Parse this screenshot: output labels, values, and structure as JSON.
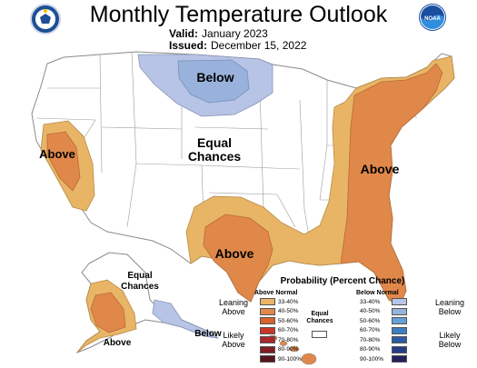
{
  "header": {
    "title": "Monthly Temperature Outlook",
    "valid_label": "Valid:",
    "valid_value": "January 2023",
    "issued_label": "Issued:",
    "issued_value": "December 15, 2022",
    "right_logo_text": "NOAA"
  },
  "map": {
    "labels": {
      "below_north": "Below",
      "above_west": "Above",
      "equal_1": "Equal",
      "equal_2": "Chances",
      "above_east": "Above",
      "above_south": "Above",
      "ak_equal_1": "Equal",
      "ak_equal_2": "Chances",
      "ak_above": "Above",
      "ak_below": "Below"
    },
    "colors": {
      "above_33_40": "#e8b567",
      "above_40_50": "#e0884a",
      "below_33_40": "#b8c4e6",
      "below_40_50": "#98b2db",
      "land": "#ffffff",
      "border": "#8a8a8a"
    }
  },
  "legend": {
    "title": "Probability (Percent Chance)",
    "above_header": "Above Normal",
    "below_header": "Below Normal",
    "equal_chances_1": "Equal",
    "equal_chances_2": "Chances",
    "leaning_above_1": "Leaning",
    "leaning_above_2": "Above",
    "likely_above_1": "Likely",
    "likely_above_2": "Above",
    "leaning_below_1": "Leaning",
    "leaning_below_2": "Below",
    "likely_below_1": "Likely",
    "likely_below_2": "Below",
    "above": [
      {
        "label": "33-40%",
        "color": "#e8b567"
      },
      {
        "label": "40-50%",
        "color": "#e0884a"
      },
      {
        "label": "50-60%",
        "color": "#d9612e"
      },
      {
        "label": "60-70%",
        "color": "#c9372a"
      },
      {
        "label": "70-80%",
        "color": "#a9272a"
      },
      {
        "label": "80-90%",
        "color": "#7e1d24"
      },
      {
        "label": "90-100%",
        "color": "#55151c"
      }
    ],
    "below": [
      {
        "label": "33-40%",
        "color": "#b8c4e6"
      },
      {
        "label": "40-50%",
        "color": "#98b2db"
      },
      {
        "label": "50-60%",
        "color": "#64a1d6"
      },
      {
        "label": "60-70%",
        "color": "#3b7fc0"
      },
      {
        "label": "70-80%",
        "color": "#2b5ba3"
      },
      {
        "label": "80-90%",
        "color": "#263d86"
      },
      {
        "label": "90-100%",
        "color": "#241f5f"
      }
    ]
  }
}
